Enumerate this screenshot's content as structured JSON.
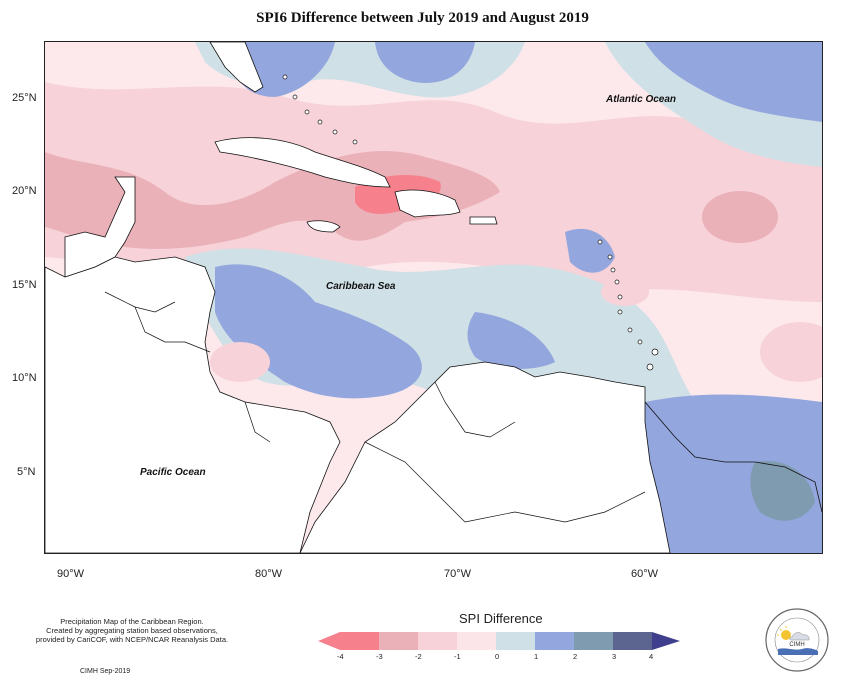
{
  "title": "SPI6 Difference between July 2019 and August 2019",
  "map": {
    "lon_ticks": [
      "90°W",
      "80°W",
      "70°W",
      "60°W"
    ],
    "lat_ticks": [
      "25°N",
      "20°N",
      "15°N",
      "10°N",
      "5°N"
    ],
    "ocean_labels": [
      "Atlantic Ocean",
      "Caribbean Sea",
      "Pacific Ocean"
    ]
  },
  "credits": {
    "line1": "Precipitation Map of the Caribbean Region.",
    "line2": "Created by aggregating station based observations,",
    "line3": "provided by CariCOF, with NCEP/NCAR Reanalysis Data.",
    "footer": "CIMH Sep-2019"
  },
  "legend": {
    "title": "SPI Difference",
    "ticks": [
      "-4",
      "-3",
      "-2",
      "-1",
      "0",
      "1",
      "2",
      "3",
      "4"
    ],
    "colors": [
      "#f6818d",
      "#ebb1b8",
      "#f7d2d8",
      "#fbe5e8",
      "#cfe0e6",
      "#93a6dd",
      "#7f9bb0",
      "#5b6590",
      "#3f3f8e"
    ]
  },
  "logo": {
    "icon": "cimh-logo-icon",
    "text": "CIMH"
  },
  "colors": {
    "bg_light_pink": "#fde9ec",
    "pink": "#f7d2d8",
    "dark_pink": "#ebb1b8",
    "red": "#f6818d",
    "light_blue": "#cfe0e6",
    "blue": "#93a6dd",
    "slate": "#7f9bb0",
    "land": "#ffffff"
  }
}
